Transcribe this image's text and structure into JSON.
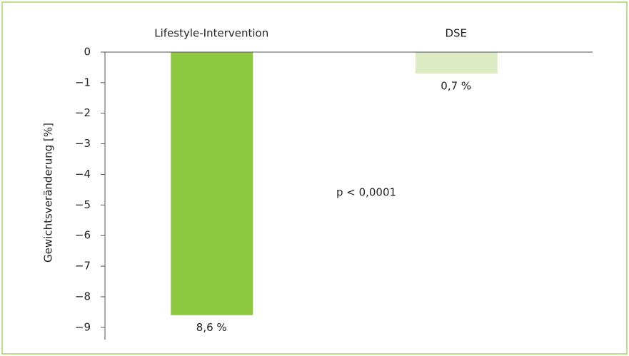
{
  "chart_data": {
    "type": "bar",
    "categories": [
      "Lifestyle-Intervention",
      "DSE"
    ],
    "values": [
      -8.6,
      -0.7
    ],
    "value_labels": [
      "8,6 %",
      "0,7 %"
    ],
    "colors": [
      "#8dc63f",
      "#dcebc4"
    ],
    "ylabel": "Gewichtsveränderung [%]",
    "annotation": "p < 0,0001",
    "ylim": [
      -9.4,
      0
    ],
    "yticks": [
      0,
      {
        "value": -1,
        "label": "−1"
      },
      {
        "value": -2,
        "label": "−2"
      },
      {
        "value": -3,
        "label": "−3"
      },
      {
        "value": -4,
        "label": "−4"
      },
      {
        "value": -5,
        "label": "−5"
      },
      {
        "value": -6,
        "label": "−6"
      },
      {
        "value": -7,
        "label": "−7"
      },
      {
        "value": -8,
        "label": "−8"
      },
      {
        "value": -9,
        "label": "−9"
      }
    ]
  }
}
